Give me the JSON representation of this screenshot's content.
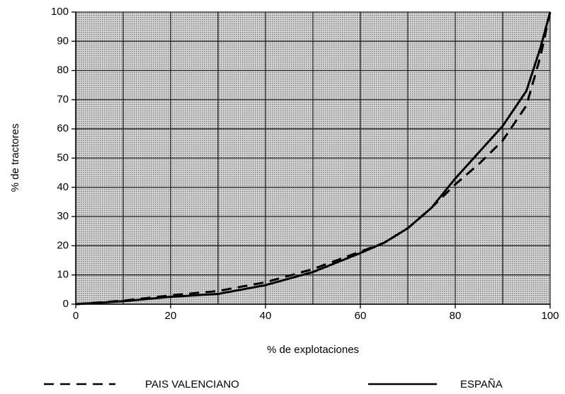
{
  "chart_data": {
    "type": "line",
    "x_label": "% de explotaciones",
    "y_label": "% de tractores",
    "x": [
      0,
      10,
      20,
      30,
      40,
      50,
      60,
      65,
      70,
      75,
      80,
      85,
      90,
      95,
      98,
      100
    ],
    "series": [
      {
        "name": "PAIS VALENCIANO",
        "color": "#000000",
        "style": "dashed",
        "values": [
          0,
          1.2,
          3,
          4.5,
          7.5,
          12,
          18,
          21,
          26,
          33,
          41,
          48,
          56,
          68,
          85,
          100
        ]
      },
      {
        "name": "ESPAÑA",
        "color": "#000000",
        "style": "solid",
        "values": [
          0,
          1,
          2.5,
          3.5,
          6.5,
          11,
          17.5,
          21,
          26,
          33,
          43,
          52,
          61,
          73,
          88,
          100
        ]
      }
    ],
    "xlim": [
      0,
      100
    ],
    "ylim": [
      0,
      100
    ],
    "xticks": [
      0,
      20,
      40,
      60,
      80,
      100
    ],
    "yticks": [
      0,
      10,
      20,
      30,
      40,
      50,
      60,
      70,
      80,
      90,
      100
    ],
    "xgrid": [
      0,
      10,
      20,
      30,
      40,
      50,
      60,
      70,
      80,
      90,
      100
    ],
    "grid": true,
    "legend": "bottom"
  }
}
